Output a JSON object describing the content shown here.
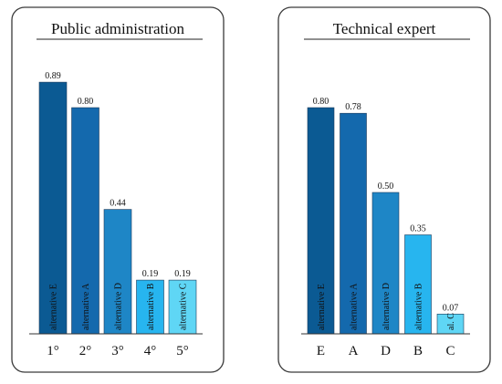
{
  "chart_data": [
    {
      "type": "bar",
      "title": "Public administration",
      "categories": [
        "1°",
        "2°",
        "3°",
        "4°",
        "5°"
      ],
      "bar_labels": [
        "alternative E",
        "alternative A",
        "alternative D",
        "alternative B",
        "alternative C"
      ],
      "values": [
        0.89,
        0.8,
        0.44,
        0.19,
        0.19
      ],
      "value_labels": [
        "0.89",
        "0.80",
        "0.44",
        "0.19",
        "0.19"
      ],
      "colors": [
        "#0b5a93",
        "#1469ad",
        "#1e86c6",
        "#27b5ef",
        "#5fd6f5"
      ],
      "ylim": [
        0,
        1
      ],
      "grid": false
    },
    {
      "type": "bar",
      "title": "Technical expert",
      "categories": [
        "E",
        "A",
        "D",
        "B",
        "C"
      ],
      "bar_labels": [
        "alternative E",
        "alternative A",
        "alternative D",
        "alternative B",
        "al. C"
      ],
      "values": [
        0.8,
        0.78,
        0.5,
        0.35,
        0.07
      ],
      "value_labels": [
        "0.80",
        "0.78",
        "0.50",
        "0.35",
        "0.07"
      ],
      "colors": [
        "#0b5a93",
        "#1469ad",
        "#1e86c6",
        "#27b5ef",
        "#5fd6f5"
      ],
      "ylim": [
        0,
        1
      ],
      "grid": false
    }
  ]
}
